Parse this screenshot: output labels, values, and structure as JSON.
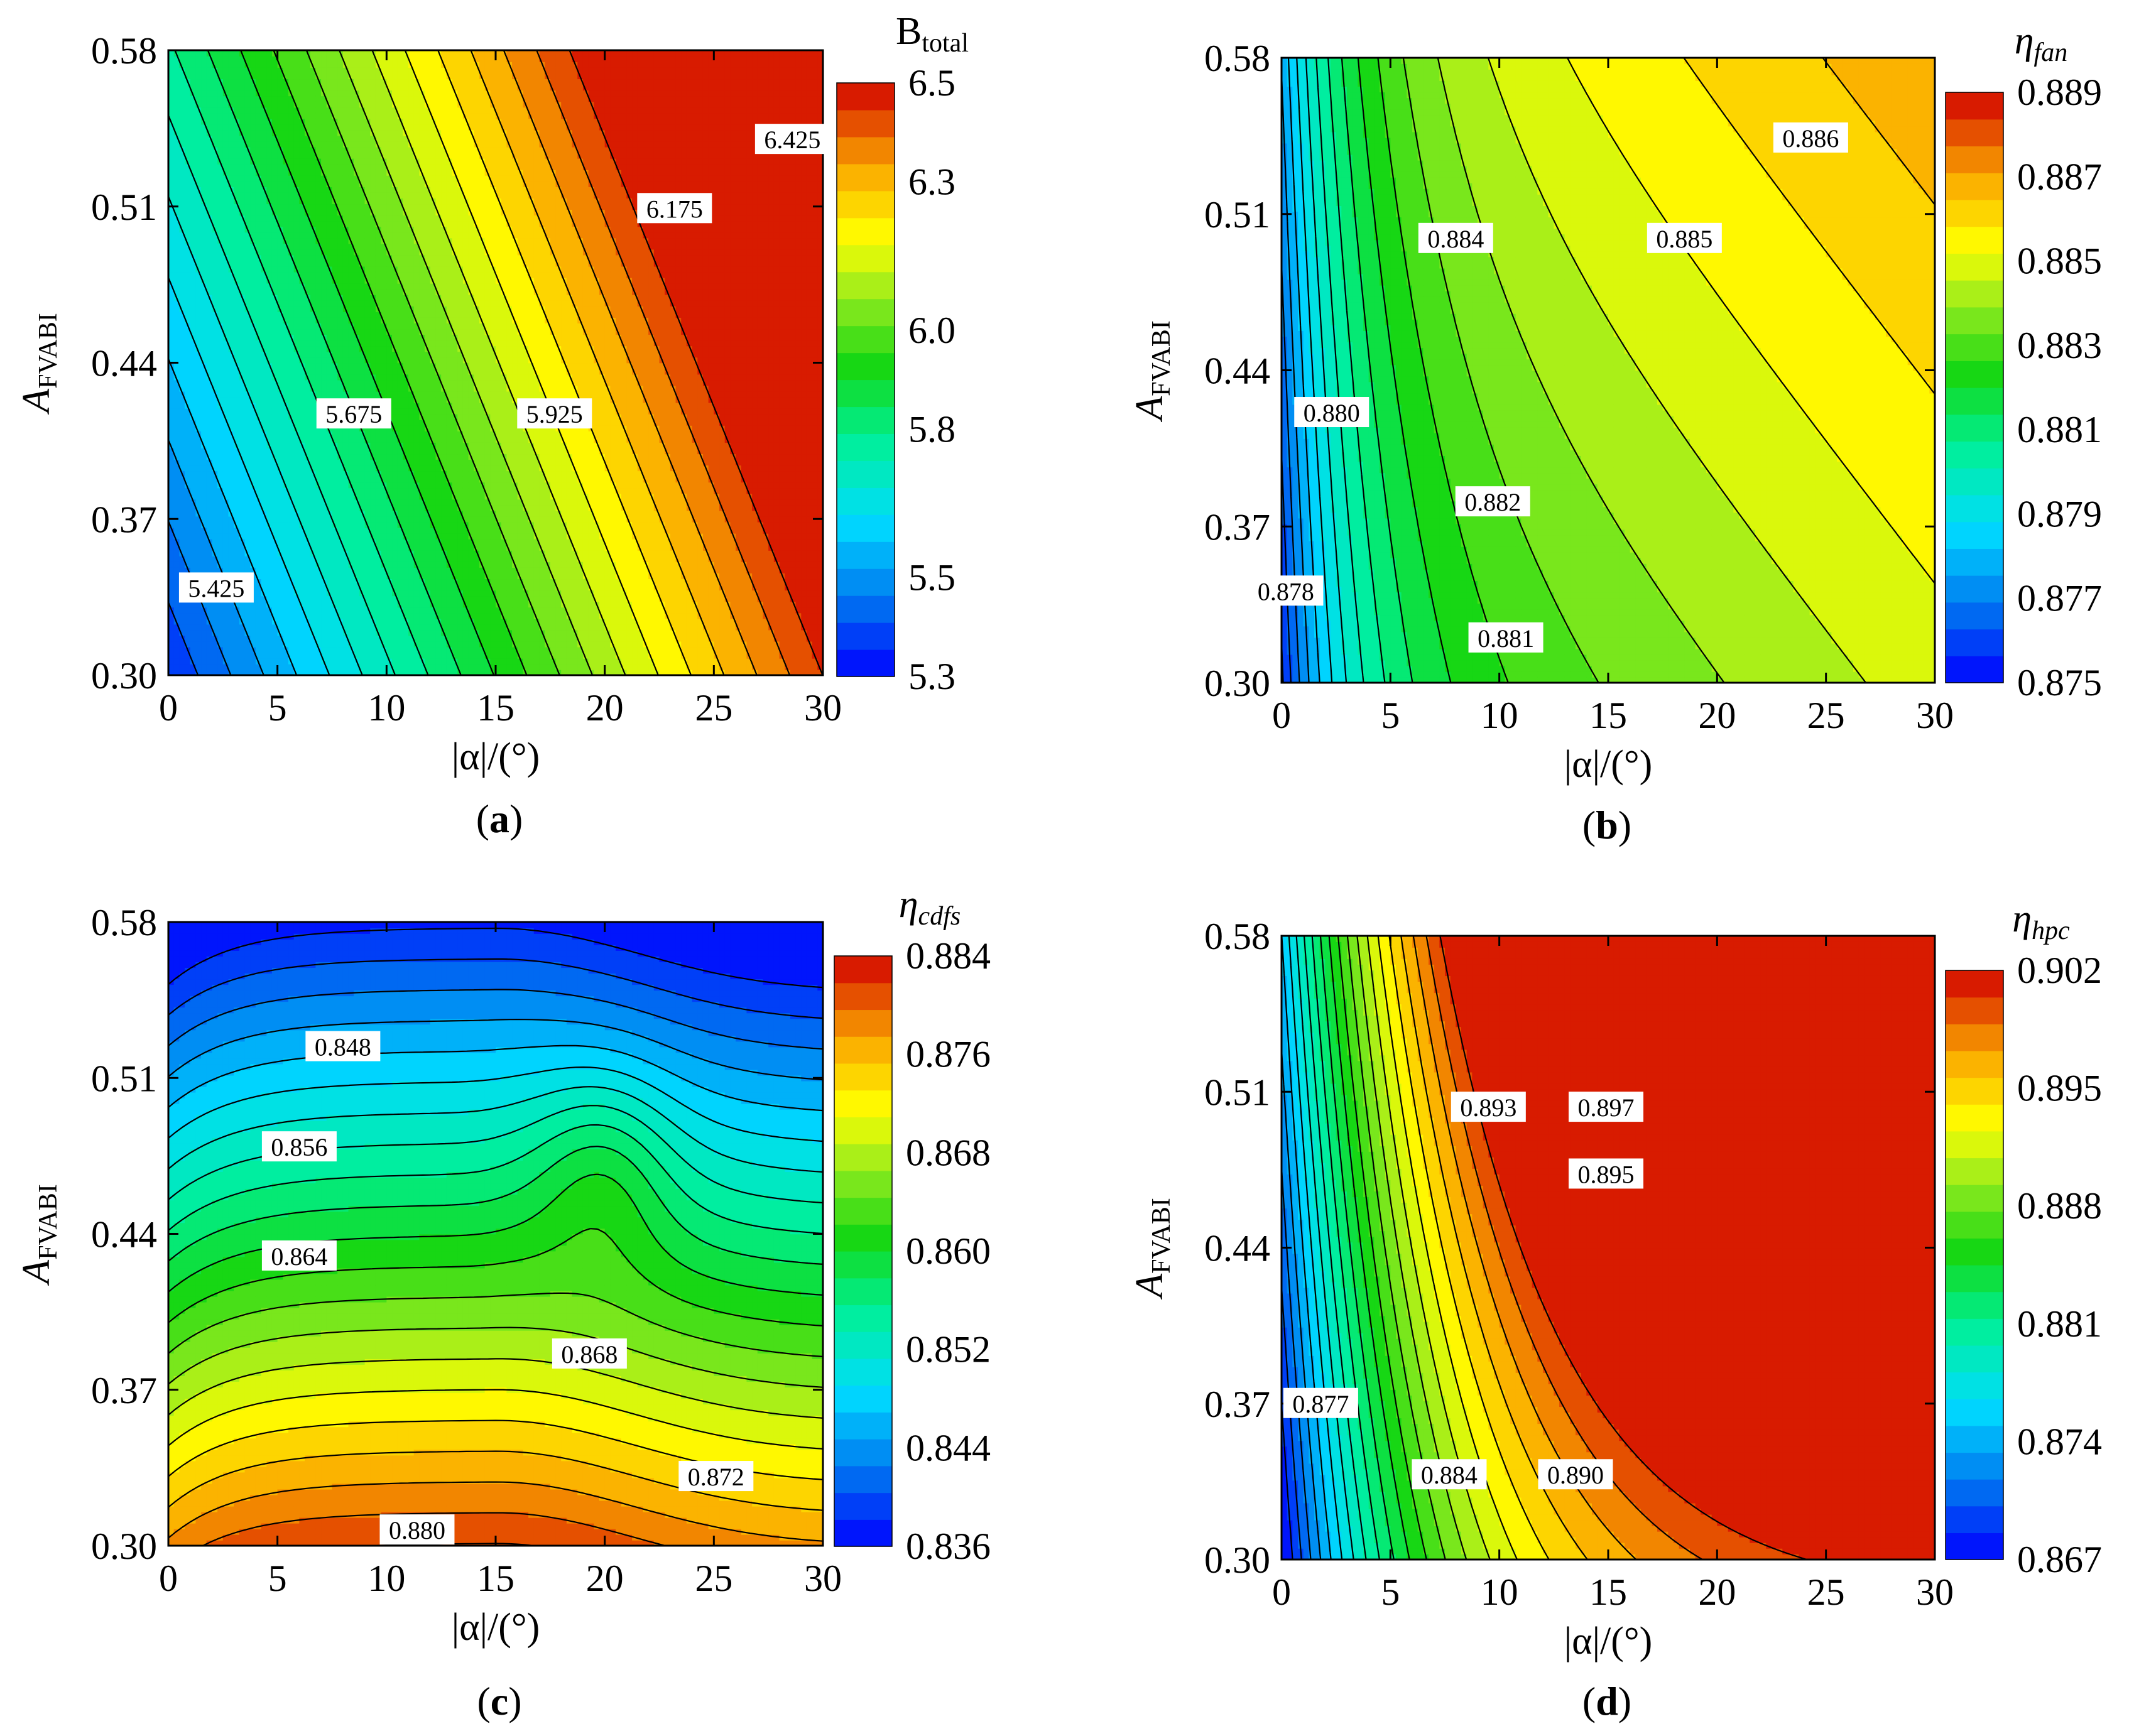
{
  "figure": {
    "panel_labels": [
      "(a)",
      "(b)",
      "(c)",
      "(d)"
    ]
  },
  "chart_data": [
    {
      "type": "contour",
      "panel_label": "(a)",
      "title": "",
      "colorbar_title": "B",
      "colorbar_title_subscript": "total",
      "xlabel": "|α|/(°)",
      "ylabel": "A",
      "ylabel_subscript": "FVABI",
      "xlim": [
        0,
        30
      ],
      "ylim": [
        0.3,
        0.58
      ],
      "xticks": [
        "0",
        "5",
        "10",
        "15",
        "20",
        "25",
        "30"
      ],
      "yticks": [
        "0.30",
        "0.37",
        "0.44",
        "0.51",
        "0.58"
      ],
      "colorbar_range": [
        5.3,
        6.5
      ],
      "colorbar_ticks": [
        "5.3",
        "5.5",
        "5.8",
        "6.0",
        "6.3",
        "6.5"
      ],
      "colormap": "rainbow",
      "field_model": {
        "kind": "linear",
        "a0": 5.36,
        "ax": 0.0362,
        "ay": 1.5
      },
      "contour_labels": [
        {
          "text": "5.425",
          "x": 2.2,
          "y": 0.339
        },
        {
          "text": "5.675",
          "x": 8.5,
          "y": 0.417
        },
        {
          "text": "5.925",
          "x": 17.7,
          "y": 0.417
        },
        {
          "text": "6.175",
          "x": 23.2,
          "y": 0.509
        },
        {
          "text": "6.425",
          "x": 28.6,
          "y": 0.54
        }
      ]
    },
    {
      "type": "contour",
      "panel_label": "(b)",
      "title": "",
      "colorbar_title": "η",
      "colorbar_title_subscript": "fan",
      "xlabel": "|α|/(°)",
      "ylabel": "A",
      "ylabel_subscript": "FVABI",
      "xlim": [
        0,
        30
      ],
      "ylim": [
        0.3,
        0.58
      ],
      "xticks": [
        "0",
        "5",
        "10",
        "15",
        "20",
        "25",
        "30"
      ],
      "yticks": [
        "0.30",
        "0.37",
        "0.44",
        "0.51",
        "0.58"
      ],
      "colorbar_range": [
        0.875,
        0.889
      ],
      "colorbar_ticks": [
        "0.875",
        "0.877",
        "0.879",
        "0.881",
        "0.883",
        "0.885",
        "0.887",
        "0.889"
      ],
      "colormap": "rainbow",
      "field_model": {
        "kind": "saturating",
        "a0": 0.8755,
        "amp": 0.0065,
        "rate": 0.28,
        "bx": 9.5e-05,
        "by": 0.0075
      },
      "contour_labels": [
        {
          "text": "0.878",
          "x": 0.2,
          "y": 0.341
        },
        {
          "text": "0.880",
          "x": 2.3,
          "y": 0.421
        },
        {
          "text": "0.881",
          "x": 10.3,
          "y": 0.32
        },
        {
          "text": "0.882",
          "x": 9.7,
          "y": 0.381
        },
        {
          "text": "0.884",
          "x": 8.0,
          "y": 0.499
        },
        {
          "text": "0.885",
          "x": 18.5,
          "y": 0.499
        },
        {
          "text": "0.886",
          "x": 24.3,
          "y": 0.544
        }
      ]
    },
    {
      "type": "contour",
      "panel_label": "(c)",
      "title": "",
      "colorbar_title": "η",
      "colorbar_title_subscript": "cdfs",
      "xlabel": "|α|/(°)",
      "ylabel": "A",
      "ylabel_subscript": "FVABI",
      "xlim": [
        0,
        30
      ],
      "ylim": [
        0.3,
        0.58
      ],
      "xticks": [
        "0",
        "5",
        "10",
        "15",
        "20",
        "25",
        "30"
      ],
      "yticks": [
        "0.30",
        "0.37",
        "0.44",
        "0.51",
        "0.58"
      ],
      "colorbar_range": [
        0.836,
        0.884
      ],
      "colorbar_ticks": [
        "0.884",
        "0.876",
        "0.868",
        "0.860",
        "0.852",
        "0.844",
        "0.836"
      ],
      "colormap": "rainbow",
      "field_model": {
        "kind": "plateau",
        "a0": 0.882,
        "ay": 0.158,
        "bump": 0.0055,
        "bump_x": 20,
        "bump_y": 0.47,
        "taper": 0.0045
      },
      "contour_labels": [
        {
          "text": "0.848",
          "x": 8.0,
          "y": 0.524
        },
        {
          "text": "0.856",
          "x": 6.0,
          "y": 0.479
        },
        {
          "text": "0.864",
          "x": 6.0,
          "y": 0.43
        },
        {
          "text": "0.868",
          "x": 19.3,
          "y": 0.386
        },
        {
          "text": "0.872",
          "x": 25.1,
          "y": 0.331
        },
        {
          "text": "0.880",
          "x": 11.4,
          "y": 0.307
        }
      ]
    },
    {
      "type": "contour",
      "panel_label": "(d)",
      "title": "",
      "colorbar_title": "η",
      "colorbar_title_subscript": "hpc",
      "xlabel": "|α|/(°)",
      "ylabel": "A",
      "ylabel_subscript": "FVABI",
      "xlim": [
        0,
        30
      ],
      "ylim": [
        0.3,
        0.58
      ],
      "xticks": [
        "0",
        "5",
        "10",
        "15",
        "20",
        "25",
        "30"
      ],
      "yticks": [
        "0.30",
        "0.37",
        "0.44",
        "0.51",
        "0.58"
      ],
      "colorbar_range": [
        0.867,
        0.902
      ],
      "colorbar_ticks": [
        "0.902",
        "0.895",
        "0.888",
        "0.881",
        "0.874",
        "0.867"
      ],
      "colormap": "rainbow",
      "field_model": {
        "kind": "saturating",
        "a0": 0.8665,
        "amp": 0.036,
        "rate": 0.118,
        "bx": 0,
        "by": 0.03,
        "cross": 0.07
      },
      "contour_labels": [
        {
          "text": "0.877",
          "x": 1.8,
          "y": 0.37
        },
        {
          "text": "0.884",
          "x": 7.7,
          "y": 0.338
        },
        {
          "text": "0.890",
          "x": 13.5,
          "y": 0.338
        },
        {
          "text": "0.893",
          "x": 9.5,
          "y": 0.503
        },
        {
          "text": "0.897",
          "x": 14.9,
          "y": 0.503
        },
        {
          "text": "0.895",
          "x": 14.9,
          "y": 0.473
        }
      ]
    }
  ]
}
